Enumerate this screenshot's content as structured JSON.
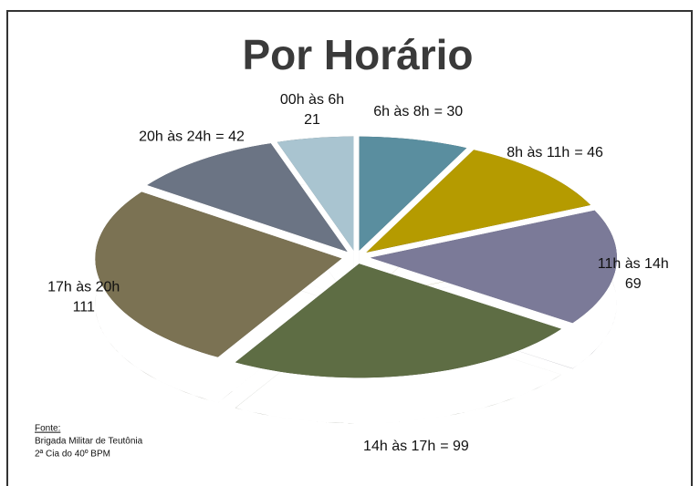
{
  "chart_data": {
    "type": "pie",
    "title": "Por Horário",
    "categories": [
      "00h às 6h",
      "6h às 8h",
      "8h às 11h",
      "11h às 14h",
      "14h às 17h",
      "17h às 20h",
      "20h às 24h"
    ],
    "values": [
      21,
      30,
      46,
      69,
      99,
      111,
      42
    ],
    "value_labels": [
      "21",
      "= 30",
      "= 46",
      "69",
      "= 99",
      "111",
      "= 42"
    ],
    "colors": [
      "#a9c4d0",
      "#5a8e9f",
      "#b59b00",
      "#7b7a98",
      "#5e6d44",
      "#7b7253",
      "#6b7484"
    ],
    "source": {
      "heading": "Fonte:",
      "lines": [
        "Brigada Militar de Teutônia",
        "2ª Cia do 40º BPM"
      ]
    }
  }
}
